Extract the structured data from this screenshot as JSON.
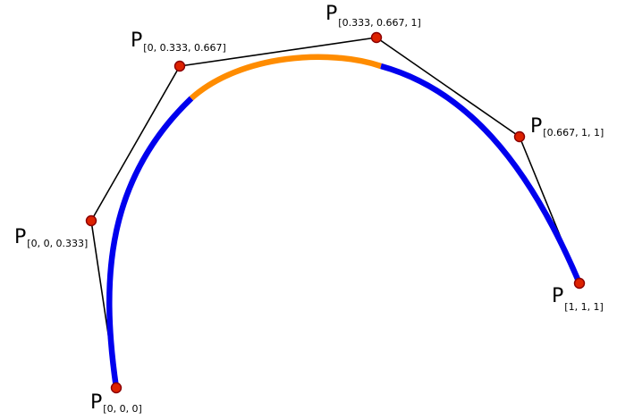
{
  "colors": {
    "outer_curve": "#0000ee",
    "middle_curve": "#ff8c00",
    "control_polygon": "#000000",
    "control_point_fill": "#dd2200",
    "control_point_stroke": "#8a0000"
  },
  "control_points": [
    {
      "id": "p000",
      "symbol": "P",
      "subscript": "[0, 0, 0]"
    },
    {
      "id": "p00033",
      "symbol": "P",
      "subscript": "[0, 0, 0.333]"
    },
    {
      "id": "p0033067",
      "symbol": "P",
      "subscript": "[0, 0.333, 0.667]"
    },
    {
      "id": "p033067_1",
      "symbol": "P",
      "subscript": "[0.333, 0.667, 1]"
    },
    {
      "id": "p06711",
      "symbol": "P",
      "subscript": "[0.667, 1, 1]"
    },
    {
      "id": "p111",
      "symbol": "P",
      "subscript": "[1, 1, 1]"
    }
  ]
}
